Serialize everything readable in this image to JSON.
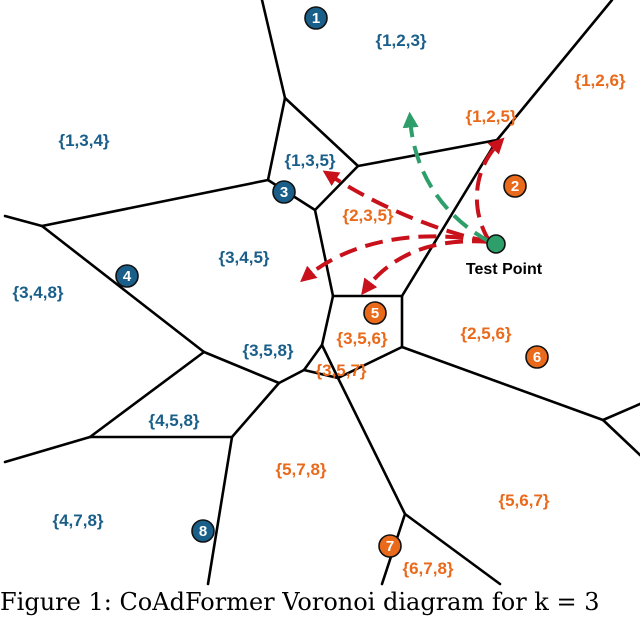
{
  "colors": {
    "blue": "#1a5f8a",
    "orange": "#ea6a1c",
    "green": "#2e9e6a",
    "red": "#c8111b"
  },
  "sites": [
    {
      "label": "1",
      "group": "blue"
    },
    {
      "label": "2",
      "group": "orange"
    },
    {
      "label": "3",
      "group": "blue"
    },
    {
      "label": "4",
      "group": "blue"
    },
    {
      "label": "5",
      "group": "orange"
    },
    {
      "label": "6",
      "group": "orange"
    },
    {
      "label": "7",
      "group": "orange"
    },
    {
      "label": "8",
      "group": "blue"
    }
  ],
  "cell_labels": [
    {
      "text": "{1,2,3}",
      "group": "blue"
    },
    {
      "text": "{1,2,6}",
      "group": "orange"
    },
    {
      "text": "{1,2,5}",
      "group": "orange"
    },
    {
      "text": "{1,3,4}",
      "group": "blue"
    },
    {
      "text": "{1,3,5}",
      "group": "blue"
    },
    {
      "text": "{2,3,5}",
      "group": "orange"
    },
    {
      "text": "{3,4,5}",
      "group": "blue"
    },
    {
      "text": "{3,4,8}",
      "group": "blue"
    },
    {
      "text": "{3,5,6}",
      "group": "orange"
    },
    {
      "text": "{2,5,6}",
      "group": "orange"
    },
    {
      "text": "{3,5,8}",
      "group": "blue"
    },
    {
      "text": "{3,5,7}",
      "group": "orange"
    },
    {
      "text": "{4,5,8}",
      "group": "blue"
    },
    {
      "text": "{5,7,8}",
      "group": "orange"
    },
    {
      "text": "{5,6,7}",
      "group": "orange"
    },
    {
      "text": "{4,7,8}",
      "group": "blue"
    },
    {
      "text": "{6,7,8}",
      "group": "orange"
    }
  ],
  "test_point_label": "Test Point",
  "caption": "Figure 1: CoAdFormer Voronoi diagram for k = 3"
}
